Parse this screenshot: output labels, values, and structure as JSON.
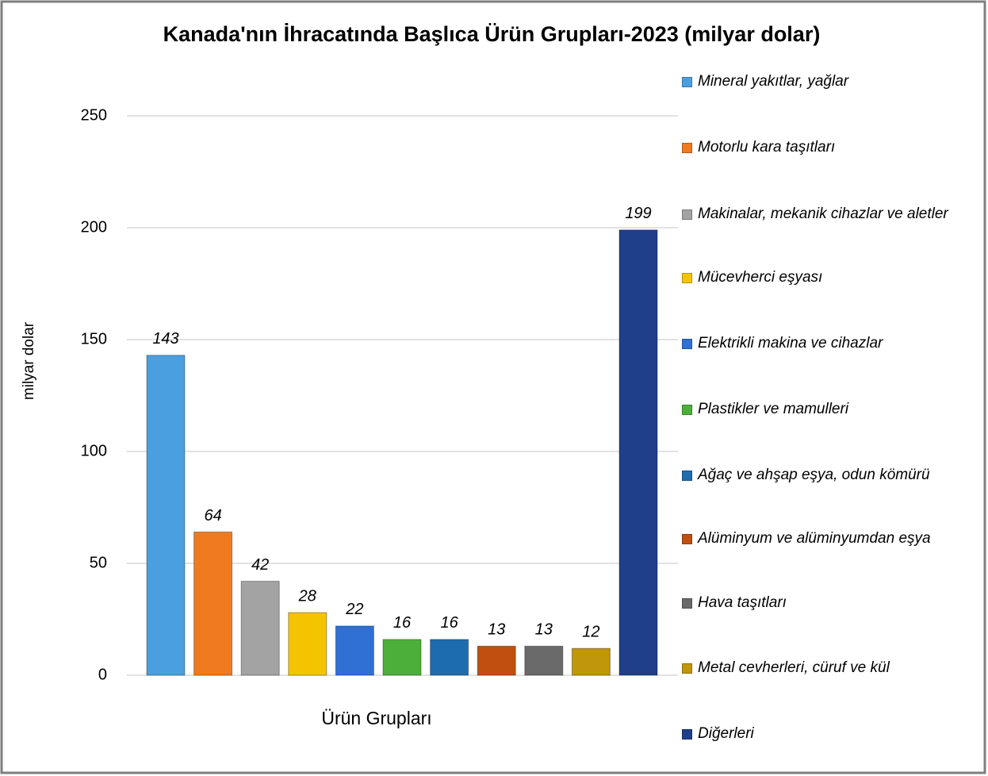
{
  "chart_data": {
    "type": "bar",
    "title": "Kanada'nın İhracatında Başlıca Ürün Grupları-2023 (milyar dolar)",
    "x_label": "Ürün Grupları",
    "y_label": "milyar dolar",
    "ylim": [
      0,
      250
    ],
    "yticks": [
      0,
      50,
      100,
      150,
      200,
      250
    ],
    "grid": true,
    "legend": "right",
    "series": [
      {
        "name": "Mineral yakıtlar, yağlar",
        "color": "#4a9fe0",
        "values": [
          143
        ]
      },
      {
        "name": "Motorlu kara taşıtları",
        "color": "#f07a20",
        "values": [
          64
        ]
      },
      {
        "name": "Makinalar, mekanik cihazlar ve aletler",
        "color": "#a3a3a3",
        "values": [
          42
        ]
      },
      {
        "name": "Mücevherci eşyası",
        "color": "#f5c400",
        "values": [
          28
        ]
      },
      {
        "name": "Elektrikli makina ve cihazlar",
        "color": "#3070d4",
        "values": [
          22
        ]
      },
      {
        "name": "Plastikler ve mamulleri",
        "color": "#4caf3a",
        "values": [
          16
        ]
      },
      {
        "name": "Ağaç ve ahşap eşya, odun kömürü",
        "color": "#1e6cb0",
        "values": [
          16
        ]
      },
      {
        "name": "Alüminyum ve alüminyumdan eşya",
        "color": "#c04f10",
        "values": [
          13
        ]
      },
      {
        "name": "Hava taşıtları",
        "color": "#6a6a6a",
        "values": [
          13
        ]
      },
      {
        "name": "Metal cevherleri, cüruf ve kül",
        "color": "#c0960a",
        "values": [
          12
        ]
      },
      {
        "name": "Diğerleri",
        "color": "#1f3f8a",
        "values": [
          199
        ]
      }
    ]
  }
}
